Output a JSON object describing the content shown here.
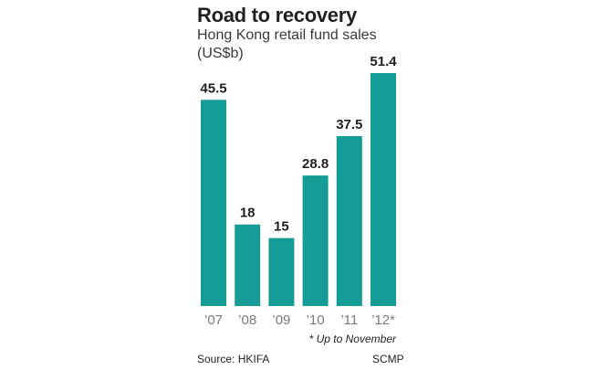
{
  "chart_data": {
    "type": "bar",
    "title": "Road to recovery",
    "subtitle": "Hong Kong retail fund sales (US$b)",
    "categories": [
      "’07",
      "’08",
      "’09",
      "’10",
      "’11",
      "’12*"
    ],
    "values": [
      45.5,
      18,
      15,
      28.8,
      37.5,
      51.4
    ],
    "value_labels": [
      "45.5",
      "18",
      "15",
      "28.8",
      "37.5",
      "51.4"
    ],
    "xlabel": "",
    "ylabel": "",
    "ylim": [
      0,
      51.4
    ],
    "grid": false,
    "bar_color": "#159c96"
  },
  "footnote": "* Up to November",
  "source": "Source: HKIFA",
  "credit": "SCMP"
}
